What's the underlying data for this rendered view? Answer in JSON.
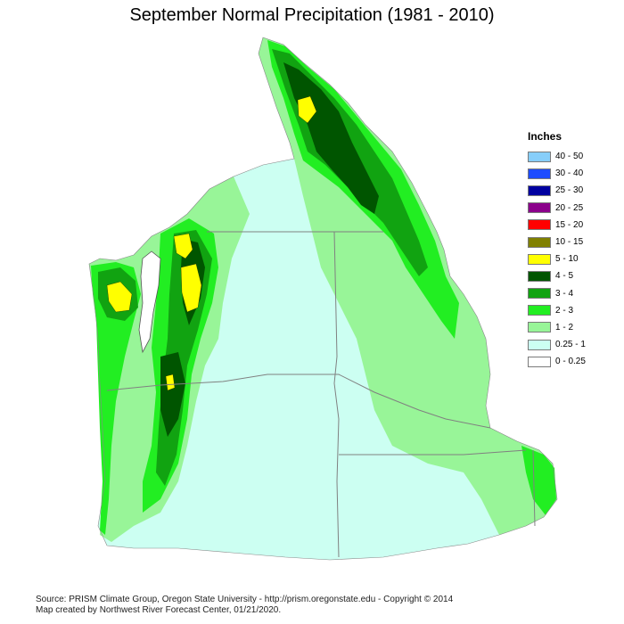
{
  "title": "September Normal Precipitation (1981 - 2010)",
  "legend": {
    "title": "Inches",
    "items": [
      {
        "label": "40 - 50",
        "color": "#87cefa"
      },
      {
        "label": "30 - 40",
        "color": "#1e4cff"
      },
      {
        "label": "25 - 30",
        "color": "#0000a0"
      },
      {
        "label": "20 - 25",
        "color": "#8b008b"
      },
      {
        "label": "15 - 20",
        "color": "#ff0000"
      },
      {
        "label": "10 - 15",
        "color": "#808000"
      },
      {
        "label": "5 - 10",
        "color": "#ffff00"
      },
      {
        "label": "4 - 5",
        "color": "#005500"
      },
      {
        "label": "3 - 4",
        "color": "#11a311"
      },
      {
        "label": "2 - 3",
        "color": "#22ee22"
      },
      {
        "label": "1 - 2",
        "color": "#98f598"
      },
      {
        "label": "0.25 - 1",
        "color": "#ccfff2"
      },
      {
        "label": "0 - 0.25",
        "color": "#ffffff"
      }
    ]
  },
  "footer": {
    "line1": "Source: PRISM Climate Group, Oregon State University - http://prism.oregonstate.edu - Copyright © 2014",
    "line2": "Map created by Northwest River Forecast Center, 01/21/2020."
  }
}
